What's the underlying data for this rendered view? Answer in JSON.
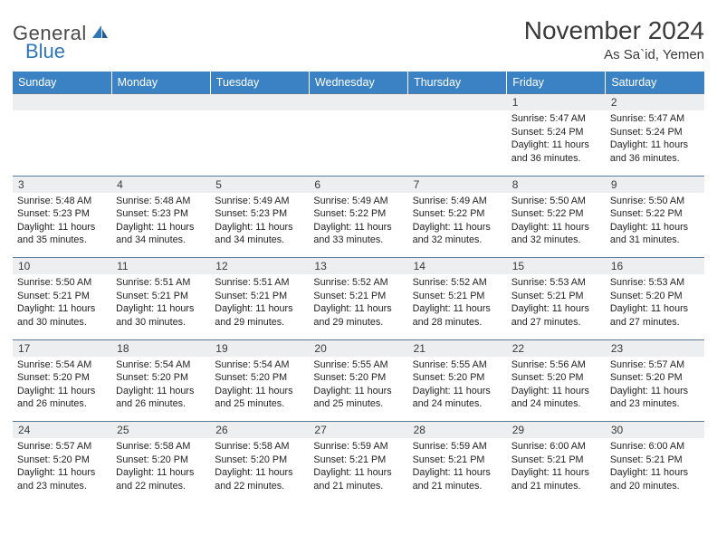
{
  "logo": {
    "text1": "General",
    "text2": "Blue"
  },
  "title": "November 2024",
  "location": "As Sa`id, Yemen",
  "colors": {
    "header_bg": "#3b82c4",
    "header_fg": "#ffffff",
    "daynum_bg": "#eceef0",
    "rule": "#6a8aa8",
    "text": "#222222",
    "logo_gray": "#4a4a4a",
    "logo_blue": "#2f77b8"
  },
  "fonts": {
    "title_size_pt": 21,
    "location_size_pt": 11,
    "weekday_size_pt": 9.5,
    "daynum_size_pt": 9,
    "info_size_pt": 8
  },
  "weekdays": [
    "Sunday",
    "Monday",
    "Tuesday",
    "Wednesday",
    "Thursday",
    "Friday",
    "Saturday"
  ],
  "weeks": [
    [
      null,
      null,
      null,
      null,
      null,
      {
        "n": "1",
        "sr": "5:47 AM",
        "ss": "5:24 PM",
        "dl": "11 hours and 36 minutes."
      },
      {
        "n": "2",
        "sr": "5:47 AM",
        "ss": "5:24 PM",
        "dl": "11 hours and 36 minutes."
      }
    ],
    [
      {
        "n": "3",
        "sr": "5:48 AM",
        "ss": "5:23 PM",
        "dl": "11 hours and 35 minutes."
      },
      {
        "n": "4",
        "sr": "5:48 AM",
        "ss": "5:23 PM",
        "dl": "11 hours and 34 minutes."
      },
      {
        "n": "5",
        "sr": "5:49 AM",
        "ss": "5:23 PM",
        "dl": "11 hours and 34 minutes."
      },
      {
        "n": "6",
        "sr": "5:49 AM",
        "ss": "5:22 PM",
        "dl": "11 hours and 33 minutes."
      },
      {
        "n": "7",
        "sr": "5:49 AM",
        "ss": "5:22 PM",
        "dl": "11 hours and 32 minutes."
      },
      {
        "n": "8",
        "sr": "5:50 AM",
        "ss": "5:22 PM",
        "dl": "11 hours and 32 minutes."
      },
      {
        "n": "9",
        "sr": "5:50 AM",
        "ss": "5:22 PM",
        "dl": "11 hours and 31 minutes."
      }
    ],
    [
      {
        "n": "10",
        "sr": "5:50 AM",
        "ss": "5:21 PM",
        "dl": "11 hours and 30 minutes."
      },
      {
        "n": "11",
        "sr": "5:51 AM",
        "ss": "5:21 PM",
        "dl": "11 hours and 30 minutes."
      },
      {
        "n": "12",
        "sr": "5:51 AM",
        "ss": "5:21 PM",
        "dl": "11 hours and 29 minutes."
      },
      {
        "n": "13",
        "sr": "5:52 AM",
        "ss": "5:21 PM",
        "dl": "11 hours and 29 minutes."
      },
      {
        "n": "14",
        "sr": "5:52 AM",
        "ss": "5:21 PM",
        "dl": "11 hours and 28 minutes."
      },
      {
        "n": "15",
        "sr": "5:53 AM",
        "ss": "5:21 PM",
        "dl": "11 hours and 27 minutes."
      },
      {
        "n": "16",
        "sr": "5:53 AM",
        "ss": "5:20 PM",
        "dl": "11 hours and 27 minutes."
      }
    ],
    [
      {
        "n": "17",
        "sr": "5:54 AM",
        "ss": "5:20 PM",
        "dl": "11 hours and 26 minutes."
      },
      {
        "n": "18",
        "sr": "5:54 AM",
        "ss": "5:20 PM",
        "dl": "11 hours and 26 minutes."
      },
      {
        "n": "19",
        "sr": "5:54 AM",
        "ss": "5:20 PM",
        "dl": "11 hours and 25 minutes."
      },
      {
        "n": "20",
        "sr": "5:55 AM",
        "ss": "5:20 PM",
        "dl": "11 hours and 25 minutes."
      },
      {
        "n": "21",
        "sr": "5:55 AM",
        "ss": "5:20 PM",
        "dl": "11 hours and 24 minutes."
      },
      {
        "n": "22",
        "sr": "5:56 AM",
        "ss": "5:20 PM",
        "dl": "11 hours and 24 minutes."
      },
      {
        "n": "23",
        "sr": "5:57 AM",
        "ss": "5:20 PM",
        "dl": "11 hours and 23 minutes."
      }
    ],
    [
      {
        "n": "24",
        "sr": "5:57 AM",
        "ss": "5:20 PM",
        "dl": "11 hours and 23 minutes."
      },
      {
        "n": "25",
        "sr": "5:58 AM",
        "ss": "5:20 PM",
        "dl": "11 hours and 22 minutes."
      },
      {
        "n": "26",
        "sr": "5:58 AM",
        "ss": "5:20 PM",
        "dl": "11 hours and 22 minutes."
      },
      {
        "n": "27",
        "sr": "5:59 AM",
        "ss": "5:21 PM",
        "dl": "11 hours and 21 minutes."
      },
      {
        "n": "28",
        "sr": "5:59 AM",
        "ss": "5:21 PM",
        "dl": "11 hours and 21 minutes."
      },
      {
        "n": "29",
        "sr": "6:00 AM",
        "ss": "5:21 PM",
        "dl": "11 hours and 21 minutes."
      },
      {
        "n": "30",
        "sr": "6:00 AM",
        "ss": "5:21 PM",
        "dl": "11 hours and 20 minutes."
      }
    ]
  ],
  "labels": {
    "sunrise": "Sunrise:",
    "sunset": "Sunset:",
    "daylight": "Daylight:"
  }
}
